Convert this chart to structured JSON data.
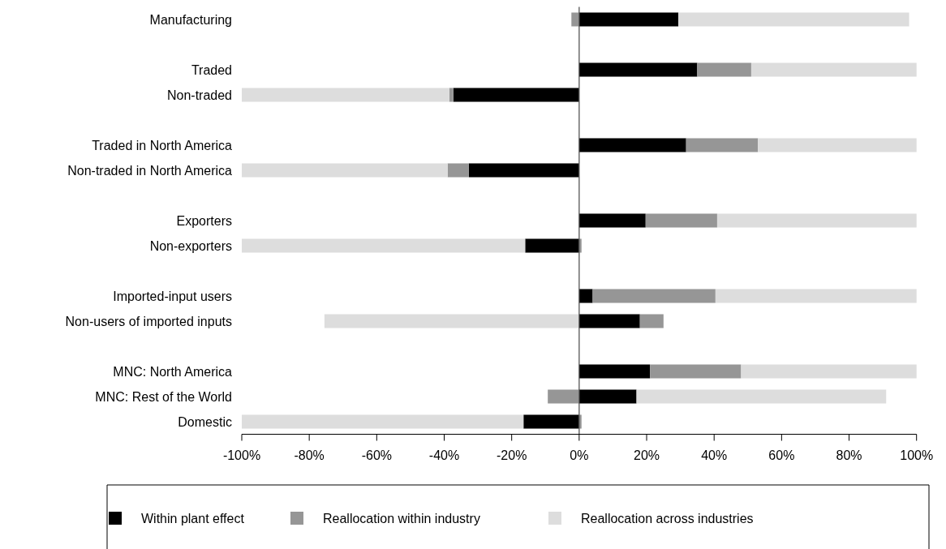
{
  "chart_data": {
    "type": "bar",
    "orientation": "horizontal",
    "stacked": true,
    "categories": [
      "Manufacturing",
      null,
      "Traded",
      "Non-traded",
      null,
      "Traded in North America",
      "Non-traded in North America",
      null,
      "Exporters",
      "Non-exporters",
      null,
      "Imported-input users",
      "Non-users of imported inputs",
      null,
      "MNC: North America",
      "MNC: Rest of the World",
      "Domestic"
    ],
    "series": [
      {
        "name": "Within plant effect",
        "color": "#000000",
        "values": [
          29.4,
          null,
          35,
          -37.3,
          null,
          31.7,
          -32.7,
          null,
          19.7,
          -16,
          null,
          4,
          18,
          null,
          21,
          17,
          -16.5
        ]
      },
      {
        "name": "Reallocation within industry",
        "color": "#969696",
        "values": [
          -2.3,
          null,
          16,
          -1.2,
          null,
          21.3,
          -6.3,
          null,
          21.2,
          0.7,
          null,
          36.4,
          7,
          null,
          27,
          -9.3,
          0.7
        ]
      },
      {
        "name": "Reallocation across industries",
        "color": "#dddddd",
        "values": [
          68.4,
          null,
          49,
          -61.5,
          null,
          47,
          -61,
          null,
          59.1,
          -84,
          null,
          59.6,
          -75.5,
          null,
          52,
          74,
          -83.5
        ]
      }
    ],
    "xlim": [
      -100,
      100
    ],
    "xticks": [
      {
        "value": -100,
        "label": "-100%"
      },
      {
        "value": -80,
        "label": "-80%"
      },
      {
        "value": -60,
        "label": "-60%"
      },
      {
        "value": -40,
        "label": "-40%"
      },
      {
        "value": -20,
        "label": "-20%"
      },
      {
        "value": 0,
        "label": "0%"
      },
      {
        "value": 20,
        "label": "20%"
      },
      {
        "value": 40,
        "label": "40%"
      },
      {
        "value": 60,
        "label": "60%"
      },
      {
        "value": 80,
        "label": "80%"
      },
      {
        "value": 100,
        "label": "100%"
      }
    ],
    "ref_lines": [
      {
        "axis": "x",
        "value": 0,
        "color": "#555555"
      }
    ],
    "legend": "bottom"
  }
}
